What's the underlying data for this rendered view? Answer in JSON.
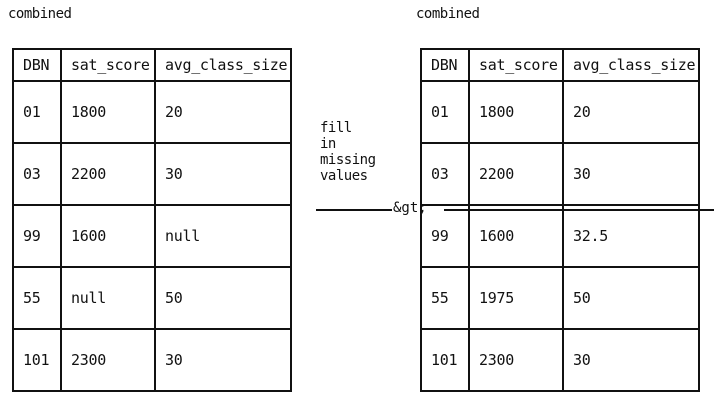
{
  "left": {
    "caption": "combined",
    "headers": [
      "DBN",
      "sat_score",
      "avg_class_size"
    ],
    "rows": [
      [
        "01",
        "1800",
        "20"
      ],
      [
        "03",
        "2200",
        "30"
      ],
      [
        "99",
        "1600",
        "null"
      ],
      [
        "55",
        "null",
        "50"
      ],
      [
        "101",
        "2300",
        "30"
      ]
    ]
  },
  "right": {
    "caption": "combined",
    "headers": [
      "DBN",
      "sat_score",
      "avg_class_size"
    ],
    "rows": [
      [
        "01",
        "1800",
        "20"
      ],
      [
        "03",
        "2200",
        "30"
      ],
      [
        "99",
        "1600",
        "32.5"
      ],
      [
        "55",
        "1975",
        "50"
      ],
      [
        "101",
        "2300",
        "30"
      ]
    ]
  },
  "arrow": {
    "note_lines": [
      "fill",
      "in",
      "missing",
      "values"
    ],
    "head": "&gt;"
  }
}
